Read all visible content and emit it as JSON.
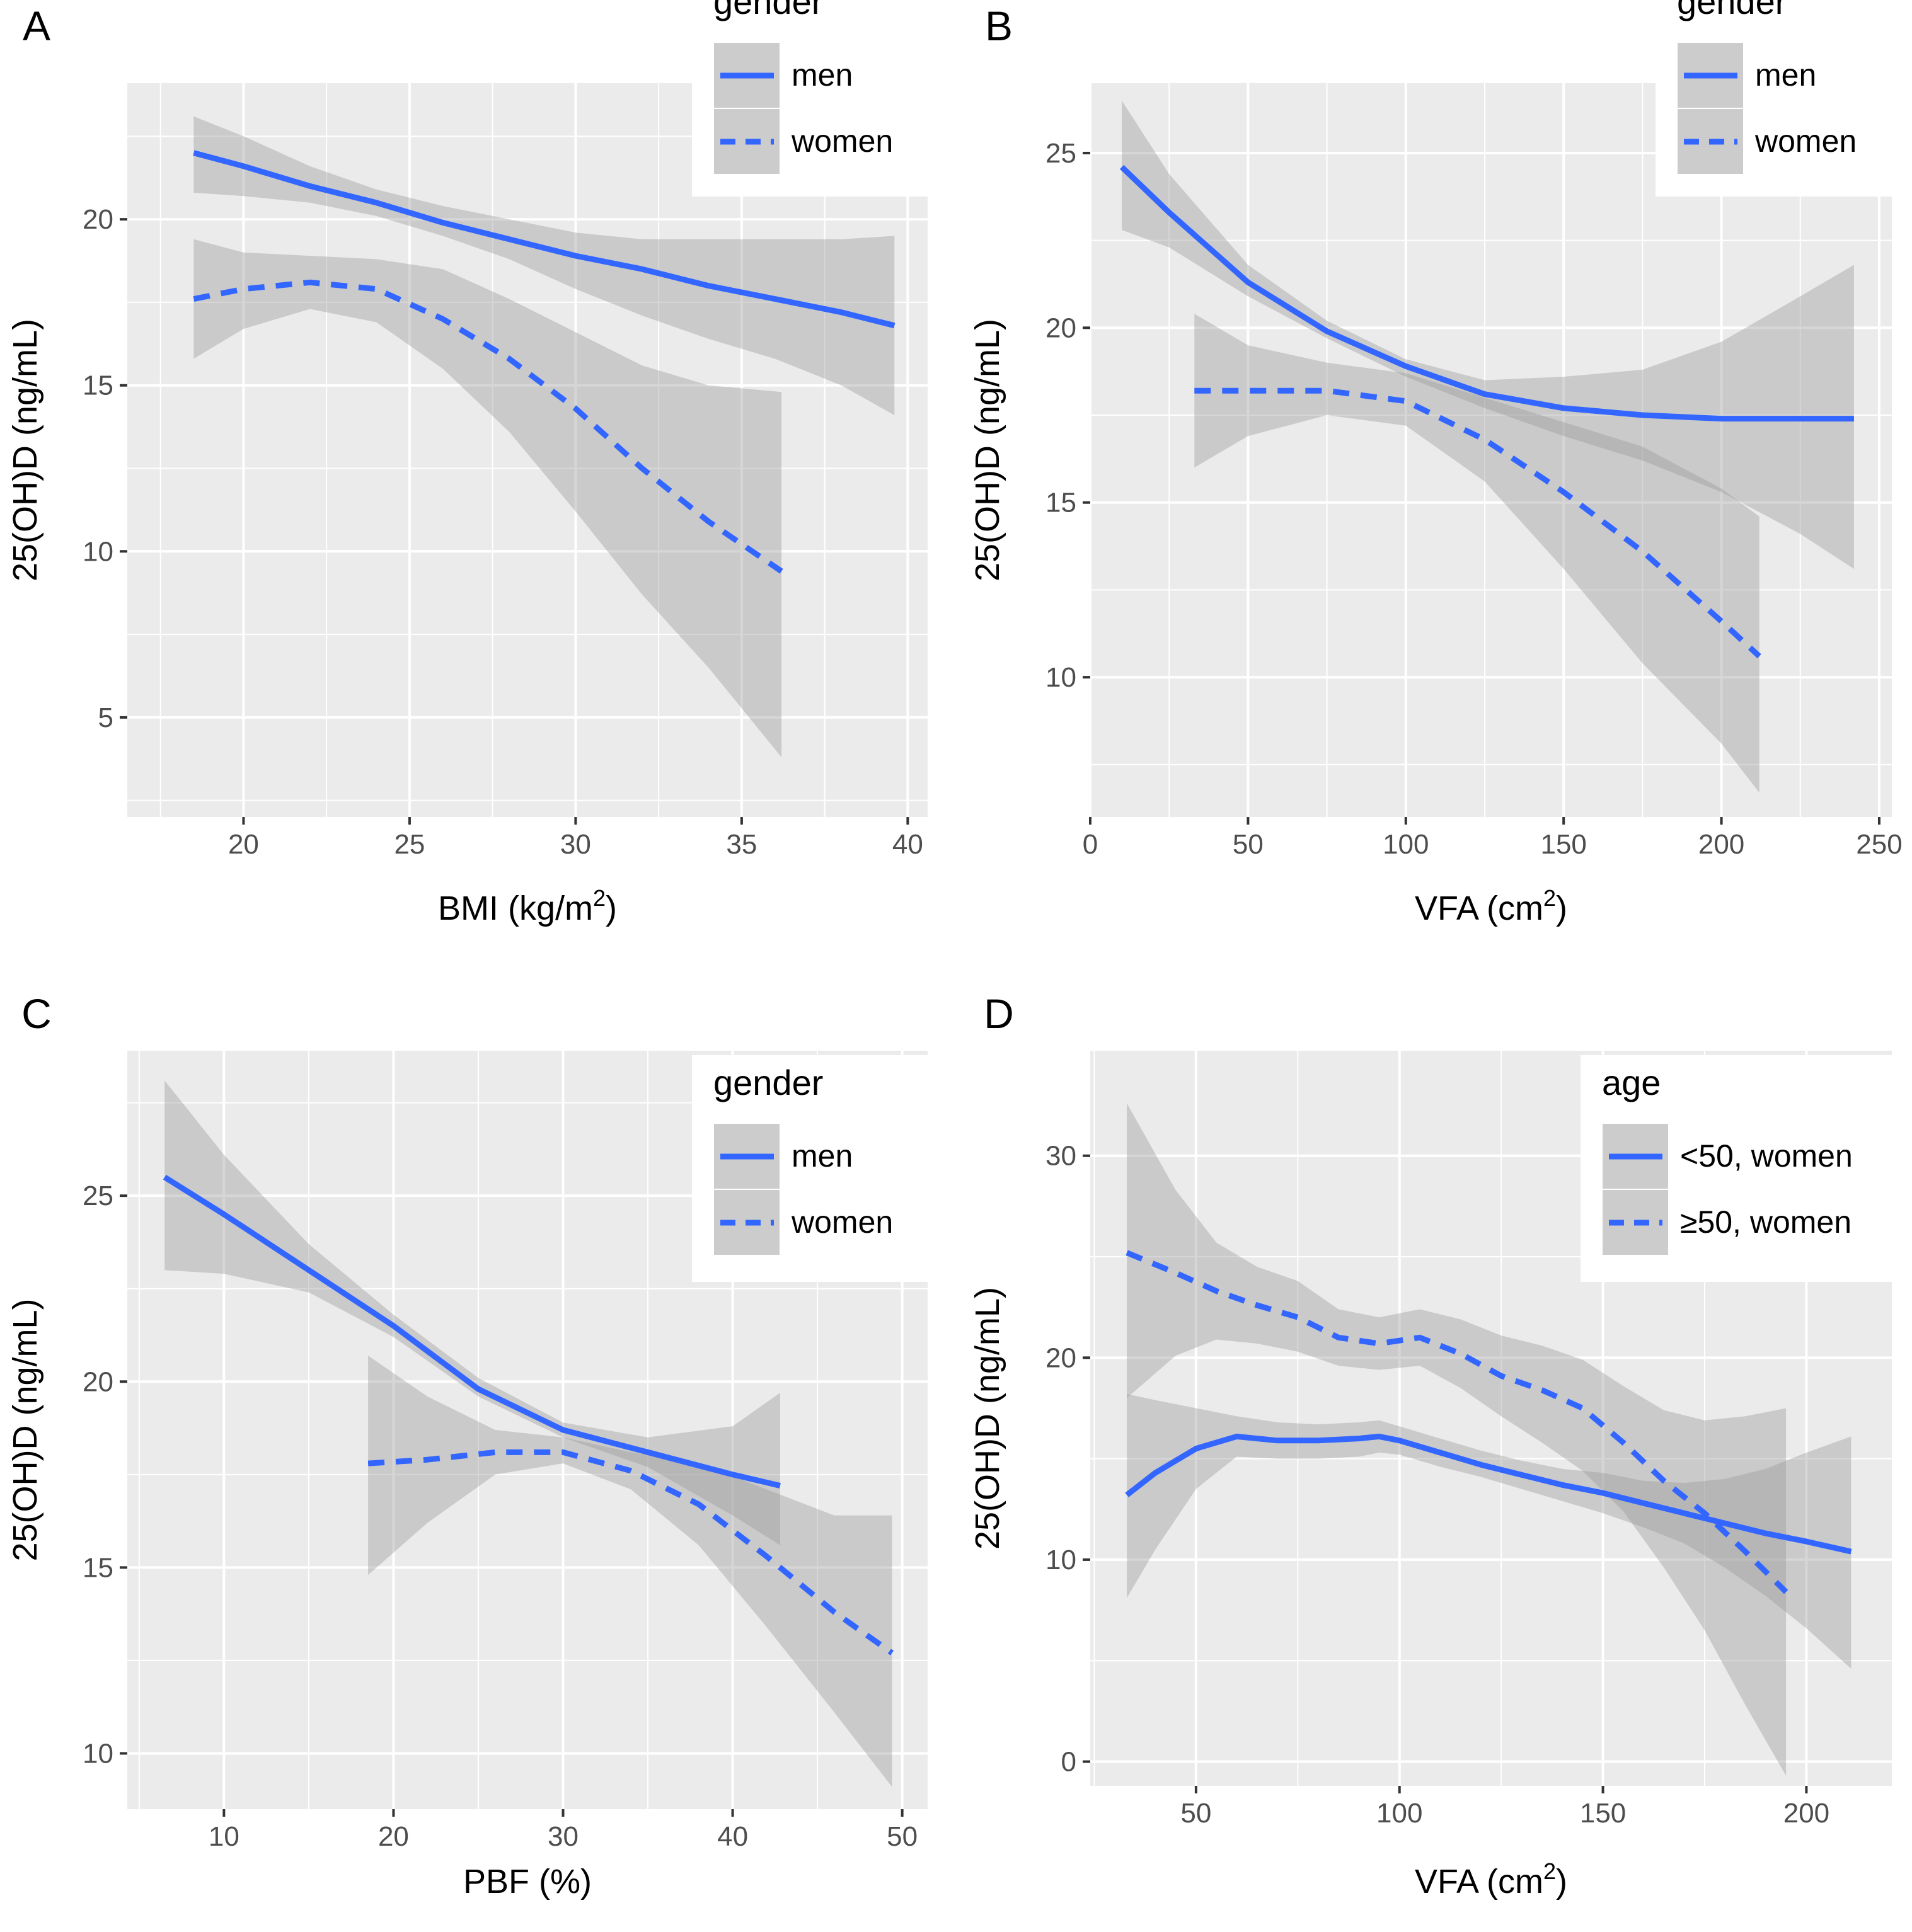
{
  "colors": {
    "panel_bg": "#ebebeb",
    "grid": "#ffffff",
    "line": "#3366ff",
    "ribbon": "#999999",
    "text": "#4d4d4d",
    "title": "#000000",
    "legend_key": "#cccccc"
  },
  "chart_data": [
    {
      "type": "line",
      "panel_label": "A",
      "xlabel": "BMI (kg/m",
      "xlabel_sup": "2",
      "xlabel_end": ")",
      "ylabel": "25(OH)D (ng/mL)",
      "xlim": [
        16.5,
        40.6
      ],
      "ylim": [
        2,
        24.1
      ],
      "xticks": [
        20,
        25,
        30,
        35,
        40
      ],
      "yticks": [
        5,
        10,
        15,
        20
      ],
      "xminor": [
        17.5,
        22.5,
        27.5,
        32.5,
        37.5
      ],
      "yminor": [
        2.5,
        7.5,
        12.5,
        17.5,
        22.5
      ],
      "legend": {
        "title": "gender",
        "entries": [
          {
            "label": "men",
            "dash": "solid"
          },
          {
            "label": "women",
            "dash": "dashed"
          }
        ]
      },
      "series": [
        {
          "name": "men",
          "dash": "solid",
          "x": [
            18.5,
            20,
            22,
            24,
            26,
            28,
            30,
            32,
            34,
            36,
            38,
            39.6
          ],
          "y": [
            22.0,
            21.6,
            21.0,
            20.5,
            19.9,
            19.4,
            18.9,
            18.5,
            18.0,
            17.6,
            17.2,
            16.8
          ],
          "lower": [
            20.8,
            20.7,
            20.5,
            20.1,
            19.5,
            18.8,
            17.9,
            17.1,
            16.4,
            15.8,
            15.0,
            14.1
          ],
          "upper": [
            23.1,
            22.5,
            21.6,
            20.9,
            20.4,
            20.0,
            19.6,
            19.4,
            19.4,
            19.4,
            19.4,
            19.5
          ]
        },
        {
          "name": "women",
          "dash": "dashed",
          "x": [
            18.5,
            20,
            22,
            24,
            26,
            28,
            30,
            32,
            34,
            36.2
          ],
          "y": [
            17.6,
            17.9,
            18.1,
            17.9,
            17.0,
            15.8,
            14.3,
            12.5,
            10.9,
            9.4
          ],
          "lower": [
            15.8,
            16.7,
            17.3,
            16.9,
            15.5,
            13.6,
            11.2,
            8.7,
            6.5,
            3.8
          ],
          "upper": [
            19.4,
            19.0,
            18.9,
            18.8,
            18.5,
            17.6,
            16.6,
            15.6,
            15.0,
            14.8
          ]
        }
      ]
    },
    {
      "type": "line",
      "panel_label": "B",
      "xlabel": "VFA (cm",
      "xlabel_sup": "2",
      "xlabel_end": ")",
      "ylabel": "25(OH)D (ng/mL)",
      "xlim": [
        0,
        254
      ],
      "ylim": [
        6,
        27
      ],
      "xticks": [
        0,
        50,
        100,
        150,
        200,
        250
      ],
      "yticks": [
        10,
        15,
        20,
        25
      ],
      "xminor": [
        25,
        75,
        125,
        175,
        225
      ],
      "yminor": [
        7.5,
        12.5,
        17.5,
        22.5
      ],
      "legend": {
        "title": "gender",
        "entries": [
          {
            "label": "men",
            "dash": "solid"
          },
          {
            "label": "women",
            "dash": "dashed"
          }
        ]
      },
      "series": [
        {
          "name": "men",
          "dash": "solid",
          "x": [
            10,
            25,
            50,
            75,
            100,
            125,
            150,
            175,
            200,
            225,
            242
          ],
          "y": [
            24.6,
            23.3,
            21.3,
            19.9,
            18.9,
            18.1,
            17.7,
            17.5,
            17.4,
            17.4,
            17.4
          ],
          "lower": [
            22.8,
            22.3,
            20.9,
            19.7,
            18.6,
            17.7,
            16.9,
            16.2,
            15.3,
            14.1,
            13.1
          ],
          "upper": [
            26.5,
            24.4,
            21.8,
            20.2,
            19.1,
            18.5,
            18.6,
            18.8,
            19.6,
            20.9,
            21.8
          ]
        },
        {
          "name": "women",
          "dash": "dashed",
          "x": [
            33,
            50,
            75,
            100,
            125,
            150,
            175,
            200,
            212
          ],
          "y": [
            18.2,
            18.2,
            18.2,
            17.9,
            16.8,
            15.3,
            13.6,
            11.6,
            10.6
          ],
          "lower": [
            16.0,
            16.9,
            17.5,
            17.2,
            15.6,
            13.1,
            10.4,
            8.1,
            6.7
          ],
          "upper": [
            20.4,
            19.5,
            19.0,
            18.7,
            18.0,
            17.3,
            16.6,
            15.4,
            14.6
          ]
        }
      ]
    },
    {
      "type": "line",
      "panel_label": "C",
      "xlabel": "PBF (%)",
      "xlabel_sup": "",
      "xlabel_end": "",
      "ylabel": "25(OH)D (ng/mL)",
      "xlim": [
        4.3,
        51.5
      ],
      "ylim": [
        8.5,
        28.9
      ],
      "xticks": [
        10,
        20,
        30,
        40,
        50
      ],
      "yticks": [
        10,
        15,
        20,
        25
      ],
      "xminor": [
        5,
        15,
        25,
        35,
        45
      ],
      "yminor": [
        12.5,
        17.5,
        22.5,
        27.5
      ],
      "legend": {
        "title": "gender",
        "entries": [
          {
            "label": "men",
            "dash": "solid"
          },
          {
            "label": "women",
            "dash": "dashed"
          }
        ]
      },
      "series": [
        {
          "name": "men",
          "dash": "solid",
          "x": [
            6.5,
            10,
            15,
            20,
            25,
            30,
            35,
            40,
            42.8
          ],
          "y": [
            25.5,
            24.5,
            23.0,
            21.5,
            19.8,
            18.7,
            18.1,
            17.5,
            17.2
          ],
          "lower": [
            23.0,
            22.9,
            22.4,
            21.2,
            19.6,
            18.5,
            17.7,
            16.4,
            15.6
          ],
          "upper": [
            28.1,
            26.1,
            23.7,
            21.8,
            20.1,
            18.9,
            18.5,
            18.8,
            19.7
          ]
        },
        {
          "name": "women",
          "dash": "dashed",
          "x": [
            18.5,
            22,
            26,
            30,
            34,
            38,
            42,
            46,
            49.4
          ],
          "y": [
            17.8,
            17.9,
            18.1,
            18.1,
            17.6,
            16.7,
            15.3,
            13.8,
            12.7
          ],
          "lower": [
            14.8,
            16.2,
            17.5,
            17.8,
            17.1,
            15.6,
            13.4,
            11.1,
            9.1
          ],
          "upper": [
            20.7,
            19.6,
            18.7,
            18.5,
            18.1,
            17.8,
            17.1,
            16.4,
            16.4
          ]
        }
      ]
    },
    {
      "type": "line",
      "panel_label": "D",
      "xlabel": "VFA (cm",
      "xlabel_sup": "2",
      "xlabel_end": ")",
      "ylabel": "25(OH)D (ng/mL)",
      "xlim": [
        24,
        221
      ],
      "ylim": [
        -1.2,
        35.2
      ],
      "xticks": [
        50,
        100,
        150,
        200
      ],
      "yticks": [
        0,
        10,
        20,
        30
      ],
      "xminor": [
        25,
        75,
        125,
        175
      ],
      "yminor": [
        5,
        15,
        25
      ],
      "legend": {
        "title": "age",
        "entries": [
          {
            "label": "<50, women",
            "dash": "solid"
          },
          {
            "label": "≥50, women",
            "dash": "dashed"
          }
        ]
      },
      "series": [
        {
          "name": "<50, women",
          "dash": "solid",
          "x": [
            33,
            40,
            50,
            60,
            70,
            80,
            90,
            95,
            100,
            110,
            120,
            130,
            140,
            150,
            160,
            170,
            180,
            190,
            200,
            211
          ],
          "y": [
            13.2,
            14.3,
            15.5,
            16.1,
            15.9,
            15.9,
            16.0,
            16.1,
            15.9,
            15.3,
            14.7,
            14.2,
            13.7,
            13.3,
            12.8,
            12.3,
            11.8,
            11.3,
            10.9,
            10.4
          ],
          "lower": [
            8.1,
            10.5,
            13.5,
            15.1,
            15.0,
            15.0,
            15.1,
            15.3,
            15.2,
            14.6,
            14.1,
            13.5,
            12.9,
            12.3,
            11.6,
            10.8,
            9.6,
            8.2,
            6.6,
            4.6
          ],
          "upper": [
            18.2,
            17.9,
            17.5,
            17.1,
            16.8,
            16.7,
            16.8,
            16.9,
            16.6,
            16.0,
            15.4,
            14.9,
            14.5,
            14.3,
            13.9,
            13.8,
            14.0,
            14.5,
            15.3,
            16.1
          ]
        },
        {
          "name": "≥50, women",
          "dash": "dashed",
          "x": [
            33,
            45,
            55,
            65,
            75,
            85,
            95,
            105,
            115,
            125,
            135,
            145,
            155,
            165,
            175,
            185,
            195
          ],
          "y": [
            25.2,
            24.2,
            23.3,
            22.6,
            22.0,
            21.0,
            20.7,
            21.0,
            20.2,
            19.1,
            18.4,
            17.5,
            15.8,
            13.9,
            12.3,
            10.4,
            8.4
          ],
          "lower": [
            18.0,
            20.1,
            20.9,
            20.7,
            20.3,
            19.6,
            19.4,
            19.6,
            18.5,
            17.1,
            15.8,
            14.4,
            12.4,
            9.6,
            6.5,
            2.8,
            -0.7
          ],
          "upper": [
            32.6,
            28.3,
            25.7,
            24.5,
            23.8,
            22.4,
            22.0,
            22.4,
            21.9,
            21.1,
            20.6,
            19.9,
            18.6,
            17.4,
            16.9,
            17.1,
            17.5
          ]
        }
      ]
    }
  ]
}
